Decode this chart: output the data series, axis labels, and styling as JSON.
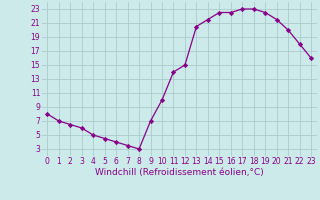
{
  "x": [
    0,
    1,
    2,
    3,
    4,
    5,
    6,
    7,
    8,
    9,
    10,
    11,
    12,
    13,
    14,
    15,
    16,
    17,
    18,
    19,
    20,
    21,
    22,
    23
  ],
  "y": [
    8,
    7,
    6.5,
    6,
    5,
    4.5,
    4,
    3.5,
    3,
    7,
    10,
    14,
    15,
    20.5,
    21.5,
    22.5,
    22.5,
    23,
    23,
    22.5,
    21.5,
    20,
    18,
    16
  ],
  "line_color": "#880088",
  "marker": "D",
  "marker_size": 2.2,
  "bg_color": "#cceaea",
  "grid_color": "#aacccc",
  "xlabel": "Windchill (Refroidissement éolien,°C)",
  "xlabel_color": "#880088",
  "xlabel_fontsize": 6.5,
  "tick_color": "#880088",
  "tick_fontsize": 5.5,
  "xlim": [
    -0.5,
    23.5
  ],
  "ylim": [
    2,
    24
  ],
  "yticks": [
    3,
    5,
    7,
    9,
    11,
    13,
    15,
    17,
    19,
    21,
    23
  ],
  "xticks": [
    0,
    1,
    2,
    3,
    4,
    5,
    6,
    7,
    8,
    9,
    10,
    11,
    12,
    13,
    14,
    15,
    16,
    17,
    18,
    19,
    20,
    21,
    22,
    23
  ]
}
